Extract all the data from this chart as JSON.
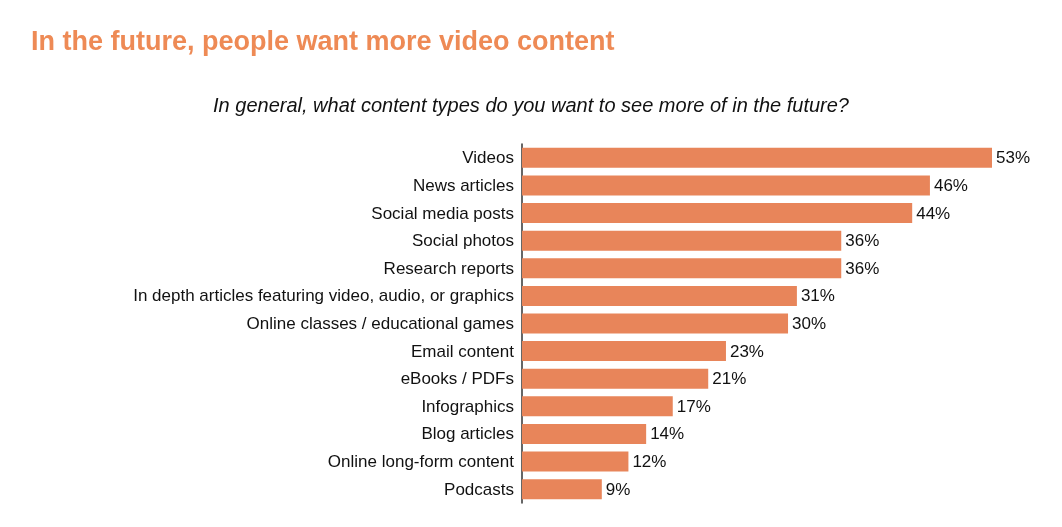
{
  "chart_data": {
    "type": "bar",
    "orientation": "horizontal",
    "title": "In the future, people want more video content",
    "subtitle": "In general, what content types do you want to see more of in the future?",
    "categories": [
      "Videos",
      "News articles",
      "Social media posts",
      "Social photos",
      "Research reports",
      "In depth articles featuring video, audio, or graphics",
      "Online classes / educational games",
      "Email content",
      "eBooks / PDFs",
      "Infographics",
      "Blog articles",
      "Online long-form content",
      "Podcasts"
    ],
    "values": [
      53,
      46,
      44,
      36,
      36,
      31,
      30,
      23,
      21,
      17,
      14,
      12,
      9
    ],
    "value_labels": [
      "53%",
      "46%",
      "44%",
      "36%",
      "36%",
      "31%",
      "30%",
      "23%",
      "21%",
      "17%",
      "14%",
      "12%",
      "9%"
    ],
    "color": "#e8855a"
  }
}
